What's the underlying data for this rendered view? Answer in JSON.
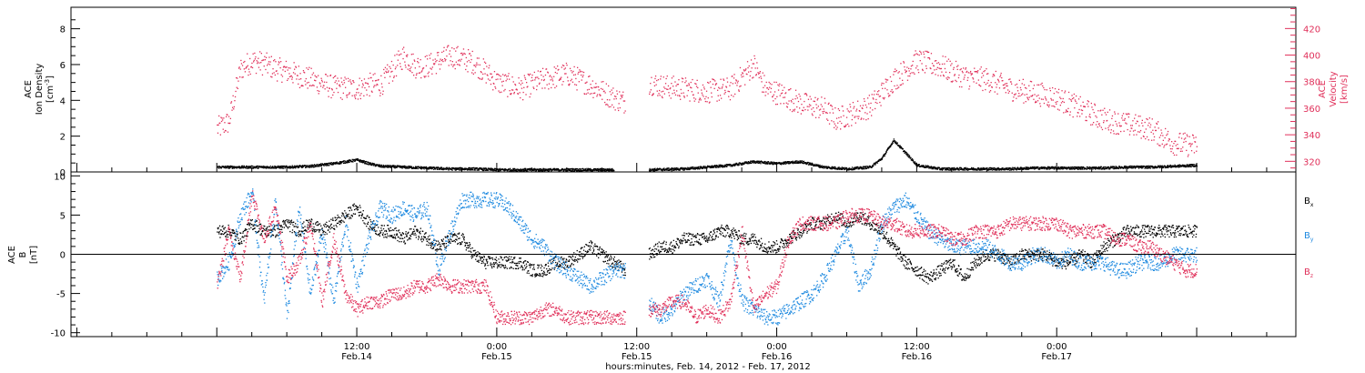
{
  "chart_data": [
    {
      "type": "scatter",
      "panel": "ion-density-and-velocity",
      "ylabel_left": [
        "ACE",
        "Ion Density"
      ],
      "ylabel_left_unit": "[cm",
      "ylabel_left_unit_sup": "-3",
      "ylabel_left_unit_end": "]",
      "ylabel_right": [
        "ACE",
        "Velocity"
      ],
      "ylabel_right_unit": "[km/s]",
      "ylim_left": [
        0,
        9.2
      ],
      "ylim_right": [
        312,
        436
      ],
      "yticks_left": [
        "0",
        "2",
        "4",
        "6",
        "8"
      ],
      "yticks_right": [
        "320",
        "340",
        "360",
        "380",
        "400",
        "420"
      ],
      "colors": {
        "density": "#000000",
        "velocity": "#e0305a"
      },
      "series": [
        {
          "name": "Ion Density",
          "axis": "left",
          "x_hours": [
            0,
            2,
            4,
            6,
            8,
            10,
            11,
            12,
            13,
            14,
            16,
            18,
            20,
            22,
            24,
            26,
            28,
            30,
            32,
            34,
            36,
            37,
            40,
            42,
            44,
            46,
            48,
            50,
            52,
            54,
            56,
            57,
            58,
            60,
            62,
            63,
            64,
            66,
            68,
            70,
            72,
            74,
            76,
            78,
            80,
            82,
            84
          ],
          "values": [
            0.3,
            0.3,
            0.3,
            0.3,
            0.35,
            0.5,
            0.6,
            0.7,
            0.5,
            0.35,
            0.3,
            0.25,
            0.2,
            0.2,
            0.15,
            0.15,
            0.15,
            0.15,
            0.15,
            0.15,
            null,
            0.15,
            0.2,
            0.3,
            0.4,
            0.6,
            0.5,
            0.6,
            0.3,
            0.2,
            0.3,
            0.8,
            1.8,
            0.4,
            0.2,
            0.2,
            0.2,
            0.2,
            0.2,
            0.25,
            0.25,
            0.25,
            0.25,
            0.3,
            0.3,
            0.35,
            0.4
          ]
        },
        {
          "name": "Velocity",
          "axis": "right",
          "x_hours": [
            0,
            1,
            2,
            3,
            4,
            5,
            6,
            8,
            10,
            12,
            13,
            14,
            16,
            17,
            18,
            20,
            22,
            24,
            26,
            28,
            30,
            32,
            34,
            35,
            36,
            37,
            38,
            40,
            42,
            44,
            46,
            47,
            48,
            50,
            52,
            53,
            54,
            56,
            58,
            60,
            62,
            64,
            66,
            68,
            70,
            72,
            74,
            76,
            78,
            80,
            82,
            84
          ],
          "values": [
            345,
            350,
            390,
            396,
            394,
            390,
            388,
            382,
            376,
            375,
            378,
            378,
            400,
            392,
            392,
            400,
            395,
            380,
            375,
            382,
            386,
            378,
            368,
            365,
            null,
            380,
            377,
            375,
            373,
            375,
            393,
            375,
            372,
            364,
            360,
            352,
            355,
            362,
            382,
            396,
            392,
            384,
            382,
            375,
            372,
            368,
            360,
            352,
            348,
            345,
            334,
            332
          ]
        }
      ]
    },
    {
      "type": "scatter",
      "panel": "magnetic-field-components",
      "ylabel": [
        "ACE",
        "B"
      ],
      "ylabel_unit": "[nT]",
      "ylim": [
        -10.5,
        10.5
      ],
      "yticks": [
        "10",
        "5",
        "0",
        "-5",
        "-10"
      ],
      "zero_line": true,
      "x_axis": {
        "ticks": [
          {
            "time": "12:00",
            "date": "Feb.14",
            "hour": 12
          },
          {
            "time": "0:00",
            "date": "Feb.15",
            "hour": 24
          },
          {
            "time": "12:00",
            "date": "Feb.15",
            "hour": 36
          },
          {
            "time": "0:00",
            "date": "Feb.16",
            "hour": 48
          },
          {
            "time": "12:00",
            "date": "Feb.16",
            "hour": 60
          },
          {
            "time": "0:00",
            "date": "Feb.17",
            "hour": 72
          }
        ],
        "xlabel": "hours:minutes, Feb. 14, 2012 - Feb. 17, 2012"
      },
      "legend": {
        "placement": "right",
        "entries": [
          {
            "base": "B",
            "sub": "x",
            "color": "#000000"
          },
          {
            "base": "B",
            "sub": "y",
            "color": "#1f8ae0"
          },
          {
            "base": "B",
            "sub": "z",
            "color": "#e0305a"
          }
        ]
      },
      "series": [
        {
          "name": "Bx",
          "color": "#000000",
          "x_hours": [
            0,
            1,
            2,
            3,
            4,
            5,
            6,
            7,
            8,
            9,
            10,
            11,
            12,
            13,
            14,
            15,
            16,
            17,
            18,
            19,
            20,
            21,
            22,
            23,
            24,
            25,
            26,
            27,
            28,
            29,
            30,
            31,
            32,
            33,
            34,
            35,
            36,
            37,
            38,
            39,
            40,
            41,
            42,
            43,
            44,
            45,
            46,
            47,
            48,
            49,
            50,
            51,
            52,
            53,
            54,
            55,
            56,
            57,
            58,
            59,
            60,
            61,
            62,
            63,
            64,
            65,
            66,
            67,
            68,
            69,
            70,
            71,
            72,
            73,
            74,
            75,
            76,
            77,
            78,
            79,
            80,
            81,
            82,
            83,
            84
          ],
          "values": [
            3,
            3,
            2,
            4,
            3,
            3,
            4,
            3,
            4,
            3,
            4,
            5,
            6,
            4,
            3,
            3,
            2,
            3,
            2,
            1,
            2,
            2,
            0,
            -1,
            -1,
            -1,
            -1,
            -2,
            -2,
            -1,
            -1,
            0,
            1,
            0,
            -1,
            -2,
            null,
            0,
            1,
            1,
            2,
            2,
            2,
            3,
            3,
            2,
            2,
            1,
            1,
            2,
            3,
            4,
            4,
            5,
            4,
            5,
            4,
            3,
            1,
            -1,
            -2,
            -3,
            -2,
            -1,
            -3,
            -1,
            0,
            0,
            -1,
            0,
            0,
            0,
            -1,
            -1,
            0,
            -1,
            1,
            2,
            3,
            3,
            3,
            3,
            3,
            3,
            3
          ]
        },
        {
          "name": "By",
          "color": "#1f8ae0",
          "x_hours": [
            0,
            1,
            2,
            3,
            4,
            5,
            6,
            7,
            8,
            9,
            10,
            11,
            12,
            13,
            14,
            15,
            16,
            17,
            18,
            19,
            20,
            21,
            22,
            23,
            24,
            25,
            26,
            27,
            28,
            29,
            30,
            31,
            32,
            33,
            34,
            35,
            36,
            37,
            38,
            39,
            40,
            41,
            42,
            43,
            44,
            45,
            46,
            47,
            48,
            49,
            50,
            51,
            52,
            53,
            54,
            55,
            56,
            57,
            58,
            59,
            60,
            61,
            62,
            63,
            64,
            65,
            66,
            67,
            68,
            69,
            70,
            71,
            72,
            73,
            74,
            75,
            76,
            77,
            78,
            79,
            80,
            81,
            82,
            83,
            84
          ],
          "values": [
            -3,
            -1,
            5,
            8,
            -6,
            7,
            -8,
            6,
            -5,
            3,
            -6,
            4,
            -4,
            2,
            6,
            5,
            6,
            5,
            6,
            -2,
            3,
            7,
            7,
            7,
            7,
            6,
            4,
            2,
            1,
            -1,
            -2,
            -3,
            -4,
            -3,
            -2,
            -2,
            null,
            -6,
            -8,
            -7,
            -5,
            -4,
            -3,
            -6,
            2,
            -6,
            -7,
            -8,
            -8,
            -7,
            -6,
            -5,
            -3,
            0,
            3,
            -4,
            -2,
            4,
            6,
            7,
            5,
            3,
            2,
            1,
            1,
            1,
            1,
            0,
            -1,
            -1,
            0,
            0,
            -1,
            0,
            -1,
            -1,
            -1,
            -2,
            -2,
            -1,
            -1,
            -1,
            0,
            0,
            0
          ]
        },
        {
          "name": "Bz",
          "color": "#e0305a",
          "x_hours": [
            0,
            1,
            2,
            3,
            4,
            5,
            6,
            7,
            8,
            9,
            10,
            11,
            12,
            13,
            14,
            15,
            16,
            17,
            18,
            19,
            20,
            21,
            22,
            23,
            24,
            25,
            26,
            27,
            28,
            29,
            30,
            31,
            32,
            33,
            34,
            35,
            36,
            37,
            38,
            39,
            40,
            41,
            42,
            43,
            44,
            45,
            46,
            47,
            48,
            49,
            50,
            51,
            52,
            53,
            54,
            55,
            56,
            57,
            58,
            59,
            60,
            61,
            62,
            63,
            64,
            65,
            66,
            67,
            68,
            69,
            70,
            71,
            72,
            73,
            74,
            75,
            76,
            77,
            78,
            79,
            80,
            81,
            82,
            83,
            84
          ],
          "values": [
            -4,
            3,
            -3,
            8,
            2,
            6,
            -3,
            -1,
            4,
            -6,
            2,
            -5,
            -7,
            -6,
            -6,
            -5,
            -5,
            -4,
            -4,
            -3,
            -4,
            -4,
            -4,
            -4,
            -8,
            -8,
            -8,
            -8,
            -7,
            -7,
            -8,
            -8,
            -8,
            -8,
            -8,
            -8,
            null,
            -7,
            -7,
            -6,
            -6,
            -8,
            -7,
            -8,
            -6,
            3,
            -7,
            -5,
            -4,
            2,
            4,
            4,
            4,
            4,
            5,
            5,
            5,
            4,
            4,
            3,
            3,
            3,
            3,
            2,
            2,
            3,
            3,
            3,
            4,
            4,
            4,
            4,
            4,
            3,
            3,
            3,
            3,
            2,
            2,
            1,
            1,
            0,
            -1,
            -2,
            -2
          ]
        }
      ]
    }
  ]
}
